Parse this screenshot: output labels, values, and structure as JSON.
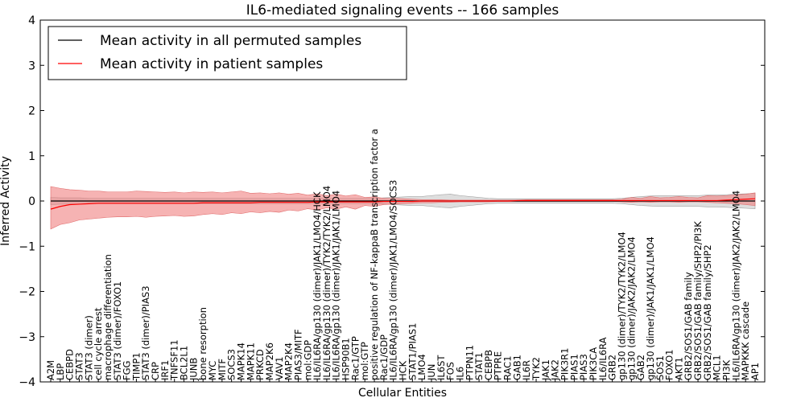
{
  "chart_data": {
    "type": "line",
    "title": "IL6-mediated signaling events -- 166 samples",
    "xlabel": "Cellular Entities",
    "ylabel": "Inferred Activity",
    "ylim": [
      -4,
      4
    ],
    "yticks": [
      4,
      3,
      2,
      1,
      0,
      -1,
      -2,
      -3,
      -4
    ],
    "ytick_labels": [
      "4",
      "3",
      "2",
      "1",
      "0",
      "−1",
      "−2",
      "−3",
      "−4"
    ],
    "legend": {
      "placement": "top-left",
      "entries": [
        {
          "label": "Mean activity in all permuted samples",
          "color": "#000000"
        },
        {
          "label": "Mean activity in patient samples",
          "color": "#ff0000"
        }
      ]
    },
    "categories": [
      "A2M",
      "LBP",
      "CEBPD",
      "STAT3",
      "STAT3 (dimer)",
      "cell cycle arrest",
      "macrophage differentiation",
      "STAT3 (dimer)/FOXO1",
      "FGG",
      "TIMP1",
      "STAT3 (dimer)/PIAS3",
      "CRP",
      "IRF1",
      "TNFSF11",
      "BCL2L1",
      "JUNB",
      "bone resorption",
      "MYC",
      "MITF",
      "SOCS3",
      "MAPK14",
      "MAPK11",
      "PRKCD",
      "MAP2K6",
      "VAV1",
      "MAP2K4",
      "PIAS3/MITF",
      "mol:GDP",
      "IL6/IL6RA/gp130 (dimer)/JAK1/LMO4/HCK",
      "IL6/IL6RA/gp130 (dimer)/TYK2/TYK2/LMO4",
      "IL6/IL6RA/gp130 (dimer)/JAK1/JAK1/LMO4",
      "HSP90B1",
      "Rac1/GTP",
      "mol:GTP",
      "positive regulation of NF-kappaB transcription factor a",
      "Rac1/GDP",
      "IL6/IL6RA/gp130 (dimer)/JAK1/LMO4/SOCS3",
      "HCK",
      "STAT1/PIAS1",
      "LMO4",
      "JUN",
      "IL6ST",
      "FOS",
      "IL6",
      "PTPN11",
      "STAT1",
      "CEBPB",
      "PTPRE",
      "RAC1",
      "GAB1",
      "IL6R",
      "TYK2",
      "JAK1",
      "JAK2",
      "PIK3R1",
      "PIAS1",
      "PIAS3",
      "PIK3CA",
      "IL6/IL6RA",
      "GRB2",
      "gp130 (dimer)/TYK2/TYK2/LMO4",
      "gp130 (dimer)/JAK2/JAK2/LMO4",
      "GAB2",
      "gp130 (dimer)/JAK1/JAK1/LMO4",
      "SOS1",
      "FOXO1",
      "AKT1",
      "GRB2/SOS1/GAB family",
      "GRB2/SOS1/GAB family/SHP2/PI3K",
      "GRB2/SOS1/GAB family/SHP2",
      "MCL1",
      "PI3K",
      "IL6/IL6RA/gp130 (dimer)/JAK2/JAK2/LMO4",
      "MAPKKK cascade",
      "AP1"
    ],
    "series": [
      {
        "name": "Mean activity in patient samples",
        "color": "#ff0000",
        "values": [
          -0.18,
          -0.12,
          -0.08,
          -0.07,
          -0.06,
          -0.05,
          -0.05,
          -0.05,
          -0.05,
          -0.05,
          -0.05,
          -0.05,
          -0.05,
          -0.05,
          -0.05,
          -0.05,
          -0.04,
          -0.04,
          -0.04,
          -0.04,
          -0.04,
          -0.04,
          -0.03,
          -0.03,
          -0.03,
          -0.03,
          -0.03,
          -0.03,
          -0.02,
          -0.02,
          -0.02,
          -0.02,
          -0.02,
          -0.02,
          -0.02,
          -0.01,
          -0.01,
          -0.01,
          -0.01,
          0.0,
          0.0,
          0.0,
          0.0,
          0.0,
          0.0,
          0.0,
          0.0,
          0.0,
          0.0,
          0.01,
          0.01,
          0.01,
          0.01,
          0.01,
          0.01,
          0.01,
          0.01,
          0.01,
          0.01,
          0.01,
          0.01,
          0.01,
          0.01,
          0.01,
          0.01,
          0.01,
          0.01,
          0.01,
          0.01,
          0.01,
          0.01,
          0.02,
          0.03,
          0.04,
          0.05
        ],
        "lower": [
          -0.62,
          -0.52,
          -0.48,
          -0.42,
          -0.4,
          -0.38,
          -0.36,
          -0.35,
          -0.35,
          -0.34,
          -0.36,
          -0.34,
          -0.33,
          -0.32,
          -0.34,
          -0.33,
          -0.3,
          -0.28,
          -0.3,
          -0.26,
          -0.28,
          -0.24,
          -0.26,
          -0.23,
          -0.25,
          -0.2,
          -0.22,
          -0.17,
          -0.2,
          -0.15,
          -0.18,
          -0.13,
          -0.18,
          -0.1,
          -0.12,
          -0.08,
          -0.07,
          -0.06,
          -0.05,
          -0.04,
          -0.04,
          -0.03,
          -0.03,
          -0.02,
          -0.02,
          -0.02,
          -0.02,
          -0.01,
          -0.01,
          -0.01,
          -0.01,
          -0.01,
          -0.01,
          -0.01,
          -0.01,
          -0.01,
          -0.01,
          -0.01,
          -0.01,
          -0.01,
          -0.02,
          -0.03,
          -0.02,
          -0.03,
          -0.02,
          -0.02,
          -0.03,
          -0.02,
          -0.02,
          -0.03,
          -0.04,
          -0.05,
          -0.06,
          -0.08,
          -0.1
        ],
        "upper": [
          0.32,
          0.28,
          0.25,
          0.24,
          0.22,
          0.22,
          0.2,
          0.2,
          0.2,
          0.22,
          0.21,
          0.2,
          0.19,
          0.2,
          0.18,
          0.2,
          0.19,
          0.2,
          0.18,
          0.2,
          0.22,
          0.17,
          0.18,
          0.16,
          0.18,
          0.15,
          0.17,
          0.13,
          0.16,
          0.12,
          0.15,
          0.11,
          0.14,
          0.08,
          0.09,
          0.06,
          0.06,
          0.05,
          0.04,
          0.03,
          0.03,
          0.03,
          0.02,
          0.02,
          0.02,
          0.02,
          0.02,
          0.02,
          0.02,
          0.02,
          0.03,
          0.03,
          0.03,
          0.03,
          0.03,
          0.03,
          0.03,
          0.03,
          0.03,
          0.03,
          0.04,
          0.08,
          0.06,
          0.1,
          0.07,
          0.08,
          0.1,
          0.08,
          0.07,
          0.12,
          0.11,
          0.12,
          0.14,
          0.15,
          0.18
        ]
      },
      {
        "name": "Mean activity in all permuted samples",
        "color": "#000000",
        "values": [
          0.0,
          0.0,
          0.0,
          0.0,
          0.0,
          0.0,
          0.0,
          0.0,
          0.0,
          0.0,
          0.0,
          0.0,
          0.0,
          0.0,
          0.0,
          0.0,
          0.0,
          0.0,
          0.0,
          0.0,
          0.0,
          0.0,
          0.0,
          0.0,
          0.0,
          0.0,
          0.0,
          0.0,
          0.0,
          0.0,
          0.0,
          0.0,
          0.0,
          0.0,
          0.0,
          0.0,
          0.0,
          0.0,
          0.0,
          0.0,
          0.0,
          0.0,
          0.0,
          0.0,
          0.0,
          0.0,
          0.0,
          0.0,
          0.0,
          0.0,
          0.0,
          0.0,
          0.0,
          0.0,
          0.0,
          0.0,
          0.0,
          0.0,
          0.0,
          0.0,
          0.0,
          0.0,
          0.0,
          0.0,
          0.0,
          0.0,
          0.0,
          0.0,
          0.0,
          0.0,
          0.0,
          0.0,
          0.0,
          0.0,
          0.0
        ],
        "lower": [
          -0.08,
          -0.07,
          -0.07,
          -0.07,
          -0.06,
          -0.06,
          -0.06,
          -0.06,
          -0.06,
          -0.06,
          -0.06,
          -0.06,
          -0.06,
          -0.06,
          -0.06,
          -0.06,
          -0.06,
          -0.06,
          -0.06,
          -0.06,
          -0.06,
          -0.06,
          -0.06,
          -0.06,
          -0.06,
          -0.06,
          -0.06,
          -0.06,
          -0.06,
          -0.06,
          -0.06,
          -0.06,
          -0.06,
          -0.06,
          -0.06,
          -0.07,
          -0.08,
          -0.09,
          -0.1,
          -0.1,
          -0.12,
          -0.14,
          -0.15,
          -0.12,
          -0.1,
          -0.08,
          -0.06,
          -0.05,
          -0.05,
          -0.05,
          -0.05,
          -0.05,
          -0.05,
          -0.05,
          -0.05,
          -0.05,
          -0.05,
          -0.05,
          -0.05,
          -0.05,
          -0.06,
          -0.08,
          -0.1,
          -0.11,
          -0.12,
          -0.12,
          -0.12,
          -0.12,
          -0.12,
          -0.13,
          -0.13,
          -0.14,
          -0.15,
          -0.16,
          -0.17
        ],
        "upper": [
          0.08,
          0.07,
          0.07,
          0.07,
          0.06,
          0.06,
          0.06,
          0.06,
          0.06,
          0.06,
          0.06,
          0.06,
          0.06,
          0.06,
          0.06,
          0.06,
          0.06,
          0.06,
          0.06,
          0.06,
          0.06,
          0.06,
          0.06,
          0.06,
          0.06,
          0.06,
          0.06,
          0.06,
          0.06,
          0.06,
          0.06,
          0.06,
          0.06,
          0.06,
          0.06,
          0.07,
          0.08,
          0.09,
          0.1,
          0.1,
          0.12,
          0.14,
          0.15,
          0.12,
          0.1,
          0.08,
          0.06,
          0.05,
          0.05,
          0.05,
          0.05,
          0.05,
          0.05,
          0.05,
          0.05,
          0.05,
          0.05,
          0.05,
          0.05,
          0.05,
          0.06,
          0.08,
          0.1,
          0.11,
          0.12,
          0.12,
          0.12,
          0.12,
          0.12,
          0.13,
          0.13,
          0.14,
          0.15,
          0.16,
          0.17
        ]
      }
    ]
  }
}
